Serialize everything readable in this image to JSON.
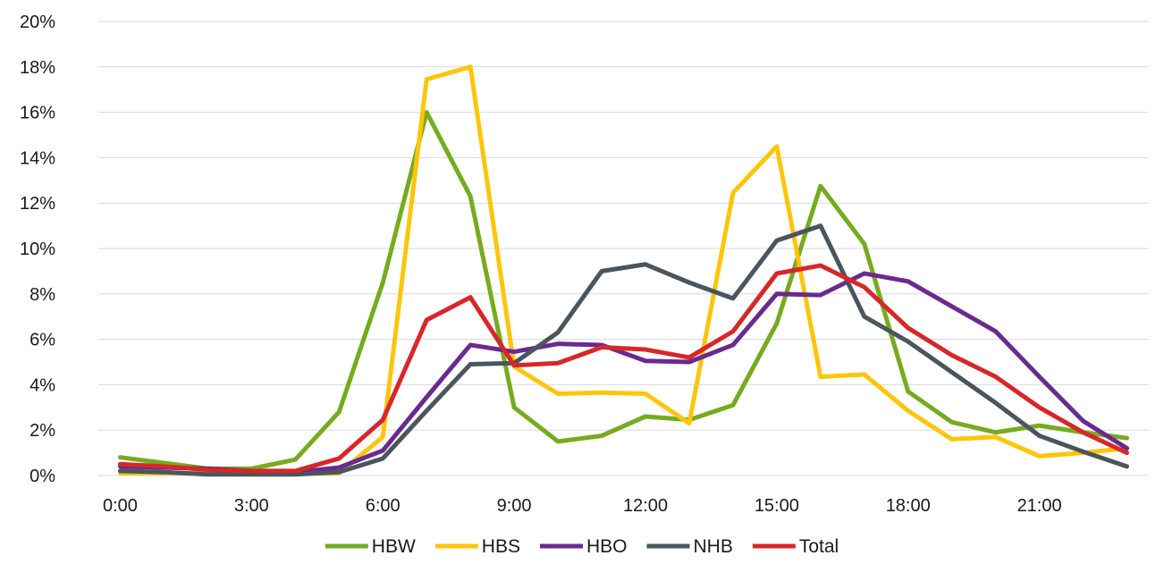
{
  "chart_data": {
    "type": "line",
    "title": "",
    "xlabel": "",
    "ylabel": "",
    "x": [
      0,
      1,
      2,
      3,
      4,
      5,
      6,
      7,
      8,
      9,
      10,
      11,
      12,
      13,
      14,
      15,
      16,
      17,
      18,
      19,
      20,
      21,
      22,
      23
    ],
    "xlim": [
      0,
      23
    ],
    "ylim": [
      0,
      20
    ],
    "x_ticks": [
      0,
      3,
      6,
      9,
      12,
      15,
      18,
      21
    ],
    "x_tick_labels": [
      "0:00",
      "3:00",
      "6:00",
      "9:00",
      "12:00",
      "15:00",
      "18:00",
      "21:00"
    ],
    "y_ticks": [
      0,
      2,
      4,
      6,
      8,
      10,
      12,
      14,
      16,
      18,
      20
    ],
    "y_tick_labels": [
      "0%",
      "2%",
      "4%",
      "6%",
      "8%",
      "10%",
      "12%",
      "14%",
      "16%",
      "18%",
      "20%"
    ],
    "grid": true,
    "legend_position": "bottom",
    "series": [
      {
        "name": "HBW",
        "color": "#77ab1f",
        "values": [
          0.8,
          0.55,
          0.3,
          0.3,
          0.7,
          2.8,
          8.5,
          16.0,
          12.3,
          3.0,
          1.5,
          1.75,
          2.6,
          2.45,
          3.1,
          6.7,
          12.75,
          10.2,
          3.7,
          2.35,
          1.9,
          2.2,
          1.9,
          1.65
        ]
      },
      {
        "name": "HBS",
        "color": "#ffc50a",
        "values": [
          0.1,
          0.1,
          0.1,
          0.1,
          0.1,
          0.1,
          1.7,
          17.45,
          18.0,
          4.8,
          3.6,
          3.65,
          3.6,
          2.3,
          12.45,
          14.5,
          4.35,
          4.45,
          2.85,
          1.6,
          1.7,
          0.85,
          1.0,
          1.2
        ]
      },
      {
        "name": "HBO",
        "color": "#6a2a8f",
        "values": [
          0.4,
          0.35,
          0.3,
          0.2,
          0.15,
          0.35,
          1.1,
          3.45,
          5.75,
          5.45,
          5.8,
          5.75,
          5.05,
          5.0,
          5.75,
          8.0,
          7.95,
          8.9,
          8.55,
          7.45,
          6.35,
          4.35,
          2.4,
          1.2
        ]
      },
      {
        "name": "NHB",
        "color": "#4a555e",
        "values": [
          0.2,
          0.15,
          0.05,
          0.05,
          0.05,
          0.15,
          0.75,
          2.85,
          4.9,
          4.95,
          6.3,
          9.0,
          9.3,
          8.5,
          7.8,
          10.35,
          11.0,
          7.0,
          5.9,
          4.55,
          3.2,
          1.75,
          1.05,
          0.4
        ]
      },
      {
        "name": "Total",
        "color": "#d72729",
        "values": [
          0.5,
          0.4,
          0.25,
          0.2,
          0.2,
          0.75,
          2.45,
          6.85,
          7.85,
          4.85,
          4.95,
          5.65,
          5.55,
          5.2,
          6.35,
          8.9,
          9.25,
          8.3,
          6.5,
          5.3,
          4.35,
          3.0,
          1.9,
          1.0
        ]
      }
    ]
  }
}
